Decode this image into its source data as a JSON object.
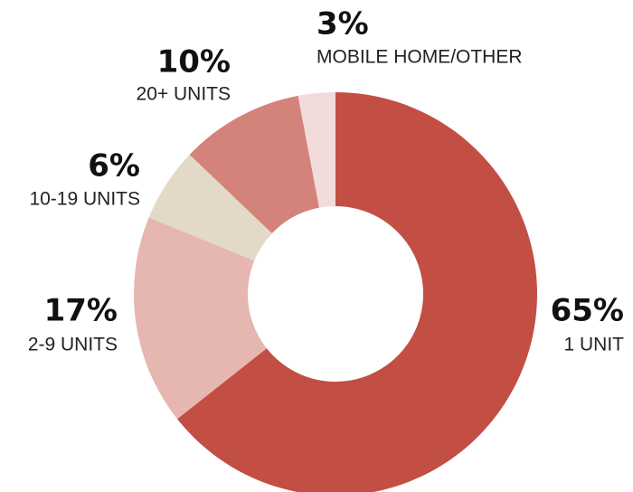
{
  "chart_data": {
    "type": "donut",
    "categories": [
      "1 UNIT",
      "2-9 UNITS",
      "10-19 UNITS",
      "20+ UNITS",
      "MOBILE HOME/OTHER"
    ],
    "values": [
      65,
      17,
      6,
      10,
      3
    ],
    "value_labels": [
      "65%",
      "17%",
      "6%",
      "10%",
      "3%"
    ],
    "colors": [
      "#c24e44",
      "#e6b6b1",
      "#e3d9c8",
      "#d4837a",
      "#f2dcdb"
    ]
  }
}
